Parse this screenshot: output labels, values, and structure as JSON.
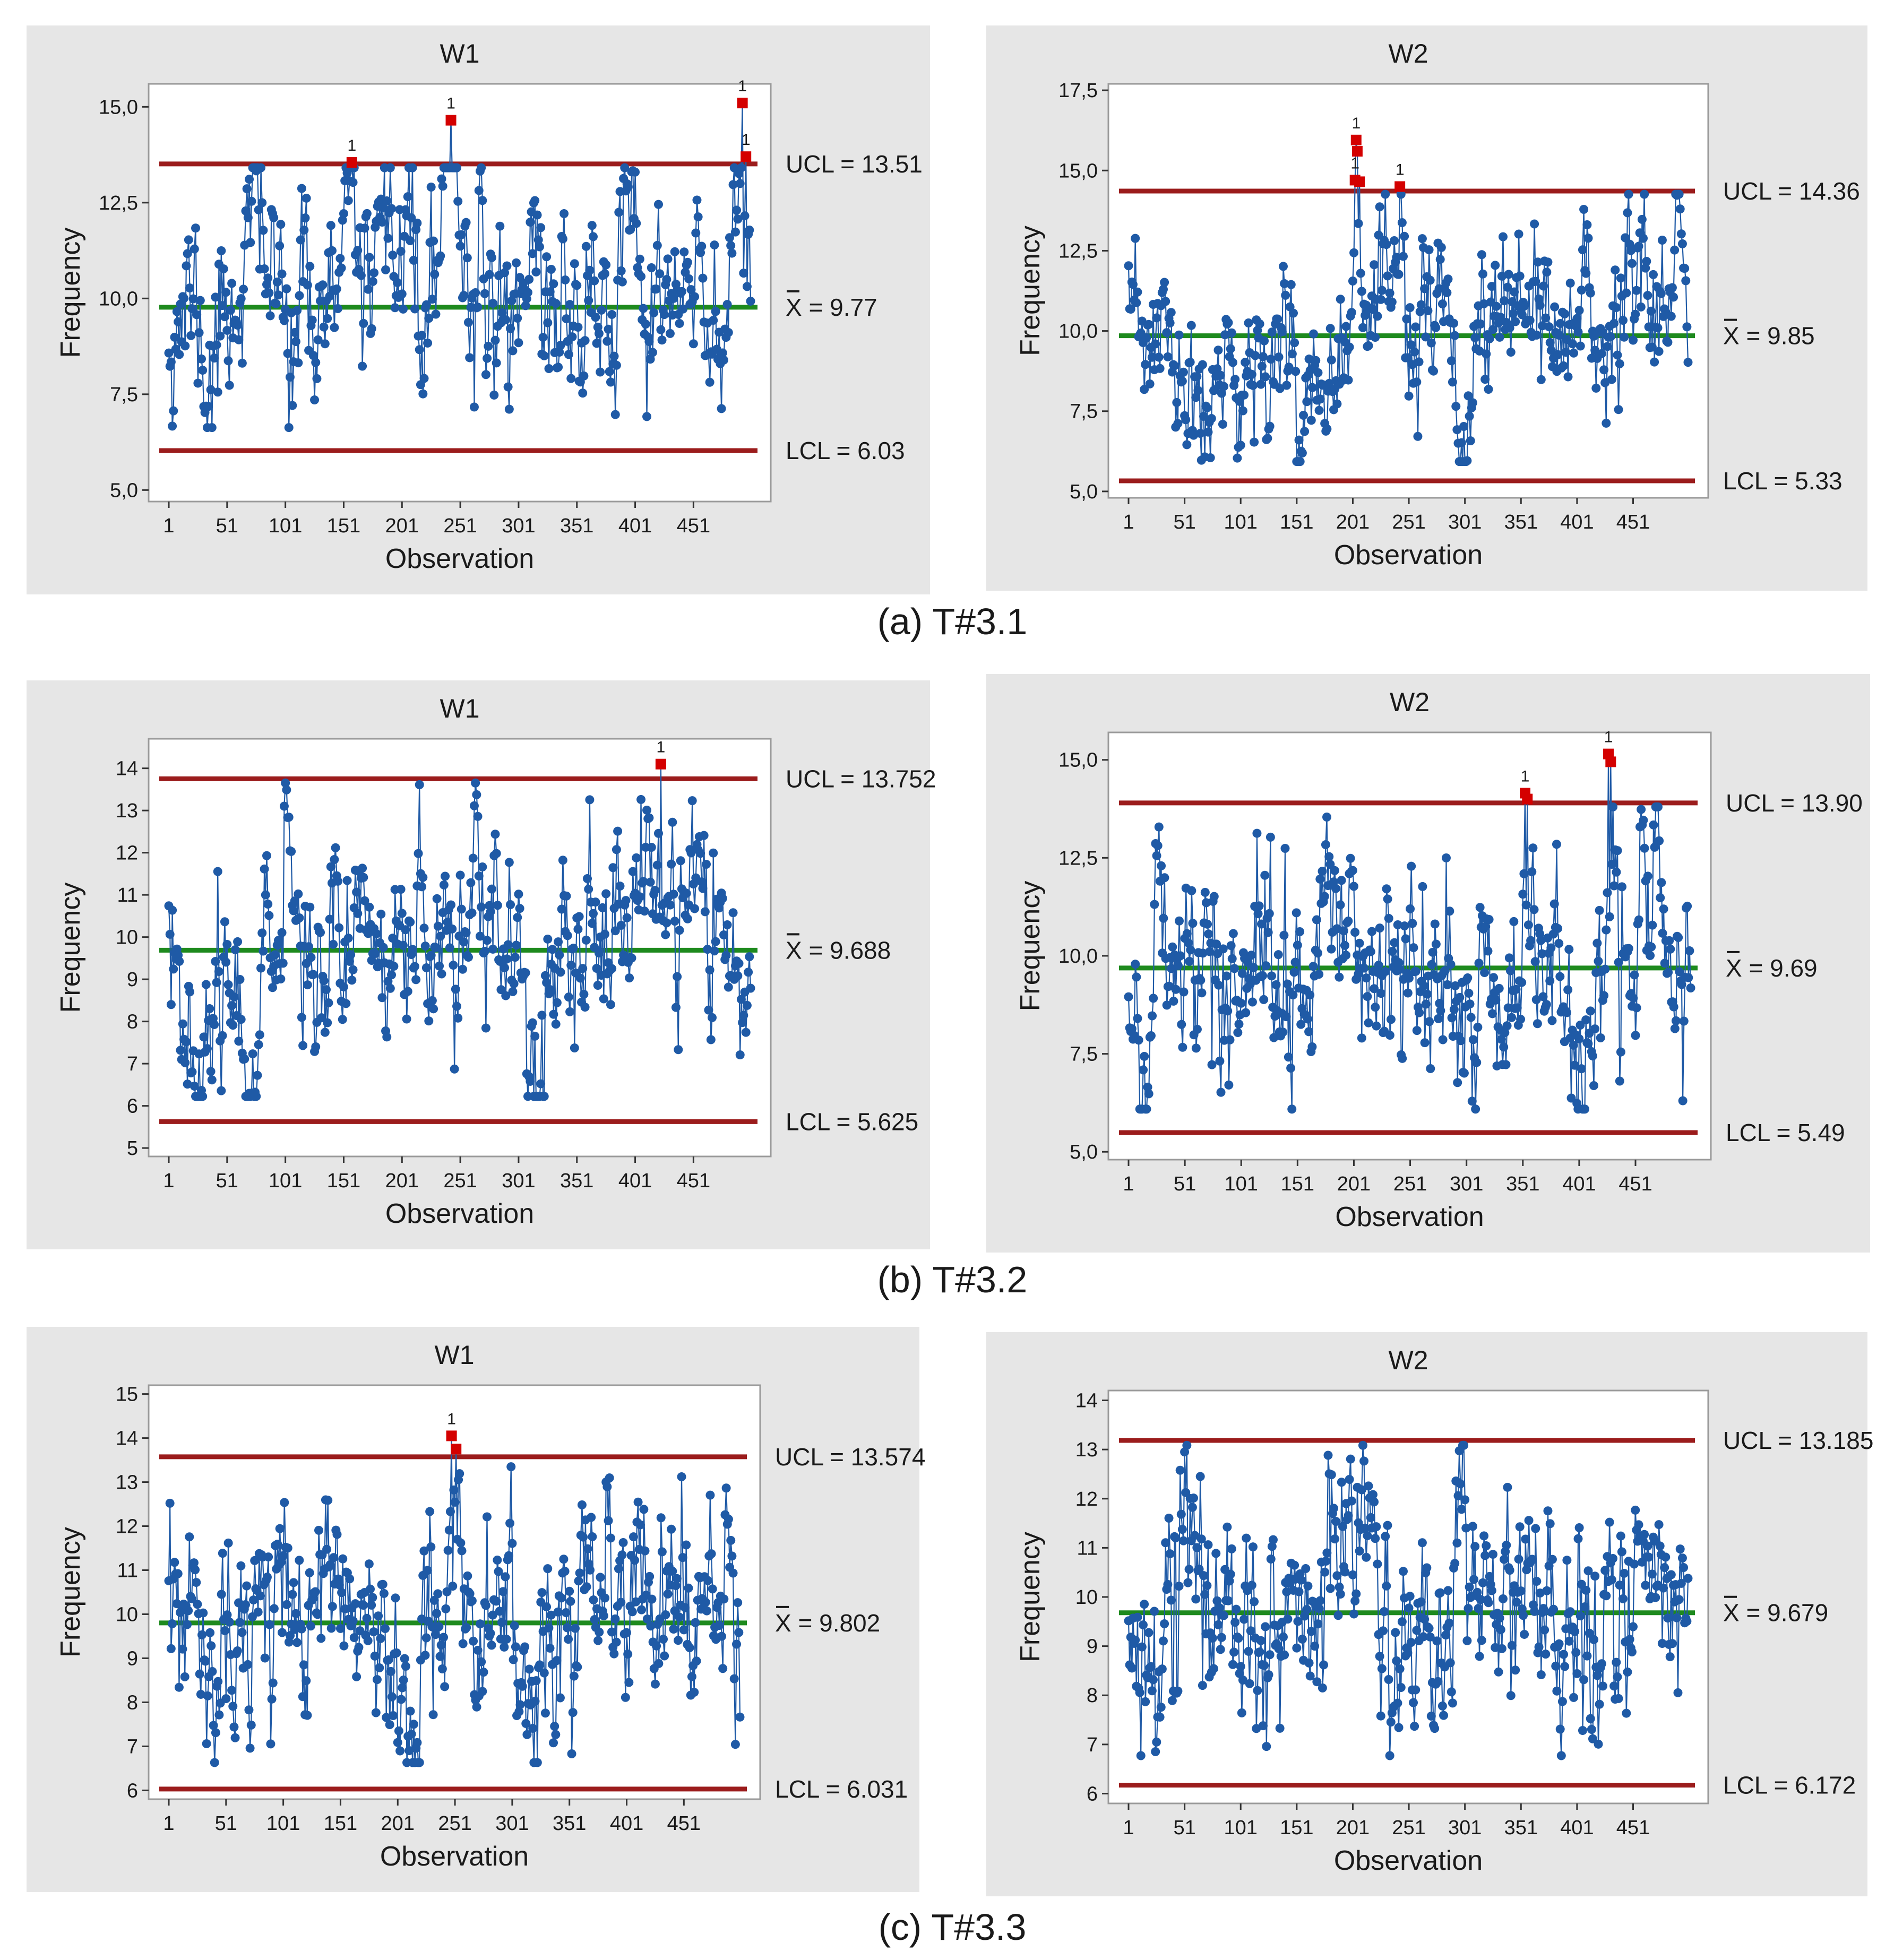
{
  "colors": {
    "panel_background": "#e6e6e6",
    "series": "#1f5aa6",
    "center_line": "#1e8a1e",
    "control_limit": "#9b1c1c",
    "out_of_control": "#d40000"
  },
  "groups": [
    {
      "caption": "(a) T#3.1",
      "charts": [
        {
          "type": "line",
          "title": "W1",
          "xlabel": "Observation",
          "ylabel": "Frequency",
          "ylim": [
            4.7,
            15.6
          ],
          "yticks": [
            5.0,
            7.5,
            10.0,
            12.5,
            15.0
          ],
          "ytick_labels": [
            "5,0",
            "7,5",
            "10,0",
            "12,5",
            "15,0"
          ],
          "xticks": [
            1,
            51,
            101,
            151,
            201,
            251,
            301,
            351,
            401,
            451
          ],
          "xtick_labels": [
            "1",
            "51",
            "101",
            "151",
            "201",
            "251",
            "301",
            "351",
            "401",
            "451"
          ],
          "n_obs": 500,
          "ucl": 13.51,
          "center": 9.77,
          "lcl": 6.03,
          "ucl_label": "UCL = 13.51",
          "center_label": "X = 9.77",
          "lcl_label": "LCL = 6.03",
          "volatility": 1.05,
          "seed": 11,
          "features": [
            [
              75,
              12.3,
              12
            ],
            [
              158,
              13.5,
              6
            ],
            [
              205,
              12.5,
              12
            ],
            [
              243,
              14.6,
              7
            ],
            [
              247,
              11.9,
              9
            ],
            [
              312,
              12.2,
              6
            ],
            [
              390,
              12.1,
              7
            ],
            [
              490,
              13.6,
              10
            ],
            [
              35,
              7.3,
              6
            ],
            [
              216,
              7.4,
              4
            ],
            [
              382,
              7.5,
              4
            ],
            [
              475,
              7.8,
              4
            ]
          ],
          "outliers": [
            {
              "x": 158,
              "y": 13.55,
              "flag": "1"
            },
            {
              "x": 243,
              "y": 14.65,
              "flag": "1"
            },
            {
              "x": 493,
              "y": 15.1,
              "flag": "1"
            },
            {
              "x": 496,
              "y": 13.7,
              "flag": "1"
            }
          ]
        },
        {
          "type": "line",
          "title": "W2",
          "xlabel": "Observation",
          "ylabel": "Frequency",
          "ylim": [
            4.8,
            17.7
          ],
          "yticks": [
            5.0,
            7.5,
            10.0,
            12.5,
            15.0,
            17.5
          ],
          "ytick_labels": [
            "5,0",
            "7,5",
            "10,0",
            "12,5",
            "15,0",
            "17,5"
          ],
          "xticks": [
            1,
            51,
            101,
            151,
            201,
            251,
            301,
            351,
            401,
            451
          ],
          "xtick_labels": [
            "1",
            "51",
            "101",
            "151",
            "201",
            "251",
            "301",
            "351",
            "401",
            "451"
          ],
          "n_obs": 500,
          "ucl": 14.36,
          "center": 9.85,
          "lcl": 5.33,
          "ucl_label": "UCL = 14.36",
          "center_label": "X = 9.85",
          "lcl_label": "LCL = 5.33",
          "volatility": 1.1,
          "seed": 23,
          "features": [
            [
              60,
              7.5,
              20
            ],
            [
              95,
              8.2,
              25
            ],
            [
              160,
              7.3,
              10
            ],
            [
              204,
              14.0,
              5
            ],
            [
              243,
              14.0,
              5
            ],
            [
              300,
              7.0,
              10
            ],
            [
              410,
              13.2,
              6
            ],
            [
              415,
              7.7,
              6
            ],
            [
              450,
              11.8,
              20
            ],
            [
              490,
              12.2,
              12
            ]
          ],
          "outliers": [
            {
              "x": 203,
              "y": 14.7,
              "flag": "1"
            },
            {
              "x": 204,
              "y": 15.95,
              "flag": "1"
            },
            {
              "x": 205,
              "y": 15.6,
              "flag": ""
            },
            {
              "x": 207,
              "y": 14.65,
              "flag": ""
            },
            {
              "x": 243,
              "y": 14.5,
              "flag": "1"
            }
          ]
        }
      ]
    },
    {
      "caption": "(b) T#3.2",
      "charts": [
        {
          "type": "line",
          "title": "W1",
          "xlabel": "Observation",
          "ylabel": "Frequency",
          "ylim": [
            4.8,
            14.7
          ],
          "yticks": [
            5,
            6,
            7,
            8,
            9,
            10,
            11,
            12,
            13,
            14
          ],
          "ytick_labels": [
            "5",
            "6",
            "7",
            "8",
            "9",
            "10",
            "11",
            "12",
            "13",
            "14"
          ],
          "xticks": [
            1,
            51,
            101,
            151,
            201,
            251,
            301,
            351,
            401,
            451
          ],
          "xtick_labels": [
            "1",
            "51",
            "101",
            "151",
            "201",
            "251",
            "301",
            "351",
            "401",
            "451"
          ],
          "n_obs": 500,
          "ucl": 13.752,
          "center": 9.688,
          "lcl": 5.625,
          "ucl_label": "UCL = 13.752",
          "center_label": "X = 9.688",
          "lcl_label": "LCL = 5.625",
          "volatility": 0.95,
          "seed": 37,
          "features": [
            [
              30,
              6.8,
              14
            ],
            [
              70,
              7.6,
              12
            ],
            [
              105,
              11.3,
              10
            ],
            [
              160,
              11.1,
              12
            ],
            [
              265,
              12.6,
              8
            ],
            [
              320,
              7.0,
              10
            ],
            [
              410,
              11.4,
              20
            ],
            [
              455,
              11.2,
              15
            ]
          ],
          "outliers": [
            {
              "x": 423,
              "y": 14.1,
              "flag": "1"
            }
          ]
        },
        {
          "type": "line",
          "title": "W2",
          "xlabel": "Observation",
          "ylabel": "Frequency",
          "ylim": [
            4.8,
            15.7
          ],
          "yticks": [
            5.0,
            7.5,
            10.0,
            12.5,
            15.0
          ],
          "ytick_labels": [
            "5,0",
            "7,5",
            "10,0",
            "12,5",
            "15,0"
          ],
          "xticks": [
            1,
            51,
            101,
            151,
            201,
            251,
            301,
            351,
            401,
            451
          ],
          "xtick_labels": [
            "1",
            "51",
            "101",
            "151",
            "201",
            "251",
            "301",
            "351",
            "401",
            "451"
          ],
          "n_obs": 500,
          "ucl": 13.9,
          "center": 9.69,
          "lcl": 5.49,
          "ucl_label": "UCL = 13.90",
          "center_label": "X = 9.69",
          "lcl_label": "LCL = 5.49",
          "volatility": 1.1,
          "seed": 41,
          "features": [
            [
              15,
              7.3,
              8
            ],
            [
              30,
              11.5,
              6
            ],
            [
              180,
              11.8,
              12
            ],
            [
              300,
              7.6,
              15
            ],
            [
              355,
              11.5,
              8
            ],
            [
              405,
              7.2,
              10
            ],
            [
              430,
              12.0,
              6
            ],
            [
              470,
              11.6,
              12
            ]
          ],
          "outliers": [
            {
              "x": 353,
              "y": 14.15,
              "flag": "1"
            },
            {
              "x": 355,
              "y": 14.0,
              "flag": ""
            },
            {
              "x": 427,
              "y": 15.15,
              "flag": "1"
            },
            {
              "x": 429,
              "y": 14.95,
              "flag": ""
            }
          ]
        }
      ]
    },
    {
      "caption": "(c) T#3.3",
      "charts": [
        {
          "type": "line",
          "title": "W1",
          "xlabel": "Observation",
          "ylabel": "Frequency",
          "ylim": [
            5.8,
            15.2
          ],
          "yticks": [
            6,
            7,
            8,
            9,
            10,
            11,
            12,
            13,
            14,
            15
          ],
          "ytick_labels": [
            "6",
            "7",
            "8",
            "9",
            "10",
            "11",
            "12",
            "13",
            "14",
            "15"
          ],
          "xticks": [
            1,
            51,
            101,
            151,
            201,
            251,
            301,
            351,
            401,
            451
          ],
          "xtick_labels": [
            "1",
            "51",
            "101",
            "151",
            "201",
            "251",
            "301",
            "351",
            "401",
            "451"
          ],
          "n_obs": 500,
          "ucl": 13.574,
          "center": 9.802,
          "lcl": 6.031,
          "ucl_label": "UCL = 13.574",
          "center_label": "X = 9.802",
          "lcl_label": "LCL = 6.031",
          "volatility": 0.95,
          "seed": 53,
          "features": [
            [
              40,
              8.3,
              15
            ],
            [
              140,
              11.2,
              8
            ],
            [
              210,
              8.0,
              10
            ],
            [
              250,
              12.8,
              8
            ],
            [
              320,
              7.6,
              8
            ],
            [
              420,
              11.6,
              10
            ]
          ],
          "outliers": [
            {
              "x": 248,
              "y": 14.05,
              "flag": "1"
            },
            {
              "x": 252,
              "y": 13.75,
              "flag": ""
            }
          ]
        },
        {
          "type": "line",
          "title": "W2",
          "xlabel": "Observation",
          "ylabel": "Frequency",
          "ylim": [
            5.8,
            14.2
          ],
          "yticks": [
            6,
            7,
            8,
            9,
            10,
            11,
            12,
            13,
            14
          ],
          "ytick_labels": [
            "6",
            "7",
            "8",
            "9",
            "10",
            "11",
            "12",
            "13",
            "14"
          ],
          "xticks": [
            1,
            51,
            101,
            151,
            201,
            251,
            301,
            351,
            401,
            451
          ],
          "xtick_labels": [
            "1",
            "51",
            "101",
            "151",
            "201",
            "251",
            "301",
            "351",
            "401",
            "451"
          ],
          "n_obs": 500,
          "ucl": 13.185,
          "center": 9.679,
          "lcl": 6.172,
          "ucl_label": "UCL = 13.185",
          "center_label": "X = 9.679",
          "lcl_label": "LCL = 6.172",
          "volatility": 0.95,
          "seed": 67,
          "features": [
            [
              25,
              7.2,
              8
            ],
            [
              60,
              11.3,
              8
            ],
            [
              200,
              11.2,
              20
            ],
            [
              300,
              11.4,
              8
            ],
            [
              420,
              7.8,
              8
            ],
            [
              455,
              12.2,
              6
            ]
          ],
          "outliers": []
        }
      ]
    }
  ]
}
